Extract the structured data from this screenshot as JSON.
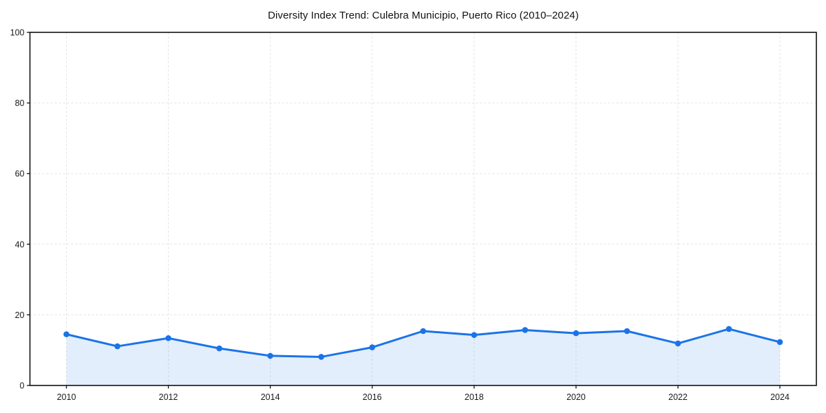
{
  "chart_data": {
    "type": "area",
    "title": "Diversity Index Trend: Culebra Municipio, Puerto Rico (2010–2024)",
    "xlabel": "",
    "ylabel": "",
    "x": [
      2010,
      2011,
      2012,
      2013,
      2014,
      2015,
      2016,
      2017,
      2018,
      2019,
      2020,
      2021,
      2022,
      2023,
      2024
    ],
    "series": [
      {
        "name": "Diversity Index",
        "values": [
          14.5,
          11.1,
          13.4,
          10.5,
          8.4,
          8.1,
          10.8,
          15.4,
          14.3,
          15.7,
          14.8,
          15.4,
          11.9,
          16.0,
          12.3
        ]
      }
    ],
    "ylim": [
      0,
      100
    ],
    "yticks": [
      0,
      20,
      40,
      60,
      80,
      100
    ],
    "xticks": [
      2010,
      2012,
      2014,
      2016,
      2018,
      2020,
      2022,
      2024
    ],
    "grid": true,
    "grid_style": "dashed",
    "legend": "none",
    "colors": {
      "line": "#1a73e8",
      "marker": "#1a73e8",
      "fill": "rgba(26,115,232,0.12)",
      "grid": "#e2e2e2",
      "axis": "#111111",
      "tick_label": "#1a1a1a",
      "background": "#ffffff"
    }
  }
}
